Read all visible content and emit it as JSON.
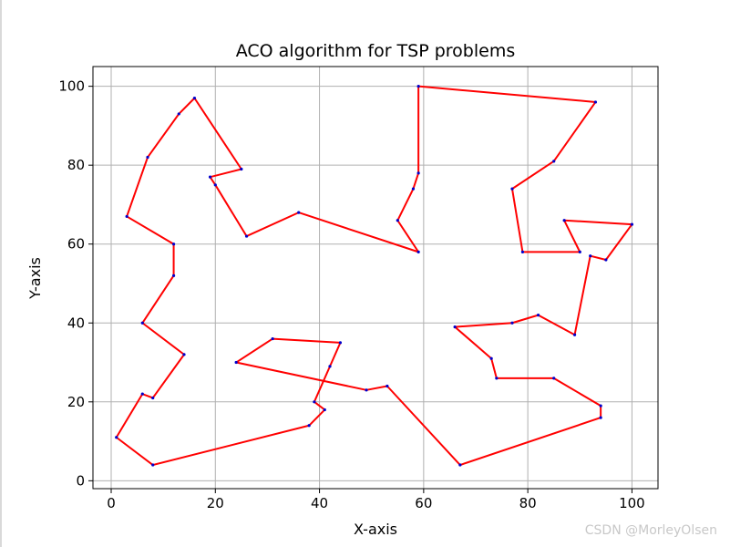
{
  "chart_data": {
    "type": "line",
    "title": "ACO algorithm for TSP problems",
    "xlabel": "X-axis",
    "ylabel": "Y-axis",
    "xlim": [
      -3.5,
      105
    ],
    "ylim": [
      -2,
      105
    ],
    "xticks": [
      0,
      20,
      40,
      60,
      80,
      100
    ],
    "yticks": [
      0,
      20,
      40,
      60,
      80,
      100
    ],
    "grid": true,
    "line_color": "#ff0000",
    "point_color": "#0000cc",
    "tour": [
      [
        59,
        100
      ],
      [
        93,
        96
      ],
      [
        85,
        81
      ],
      [
        77,
        74
      ],
      [
        79,
        58
      ],
      [
        90,
        58
      ],
      [
        87,
        66
      ],
      [
        100,
        65
      ],
      [
        95,
        56
      ],
      [
        92,
        57
      ],
      [
        89,
        37
      ],
      [
        82,
        42
      ],
      [
        77,
        40
      ],
      [
        66,
        39
      ],
      [
        73,
        31
      ],
      [
        74,
        26
      ],
      [
        85,
        26
      ],
      [
        94,
        19
      ],
      [
        94,
        16
      ],
      [
        67,
        4
      ],
      [
        53,
        24
      ],
      [
        49,
        23
      ],
      [
        24,
        30
      ],
      [
        31,
        36
      ],
      [
        44,
        35
      ],
      [
        42,
        29
      ],
      [
        39,
        20
      ],
      [
        41,
        18
      ],
      [
        38,
        14
      ],
      [
        8,
        4
      ],
      [
        1,
        11
      ],
      [
        6,
        22
      ],
      [
        8,
        21
      ],
      [
        14,
        32
      ],
      [
        6,
        40
      ],
      [
        12,
        52
      ],
      [
        12,
        60
      ],
      [
        3,
        67
      ],
      [
        7,
        82
      ],
      [
        13,
        93
      ],
      [
        16,
        97
      ],
      [
        25,
        79
      ],
      [
        19,
        77
      ],
      [
        20,
        75
      ],
      [
        26,
        62
      ],
      [
        36,
        68
      ],
      [
        59,
        58
      ],
      [
        55,
        66
      ],
      [
        58,
        74
      ],
      [
        59,
        78
      ],
      [
        59,
        100
      ]
    ]
  },
  "watermark": "CSDN @MorleyOlsen"
}
